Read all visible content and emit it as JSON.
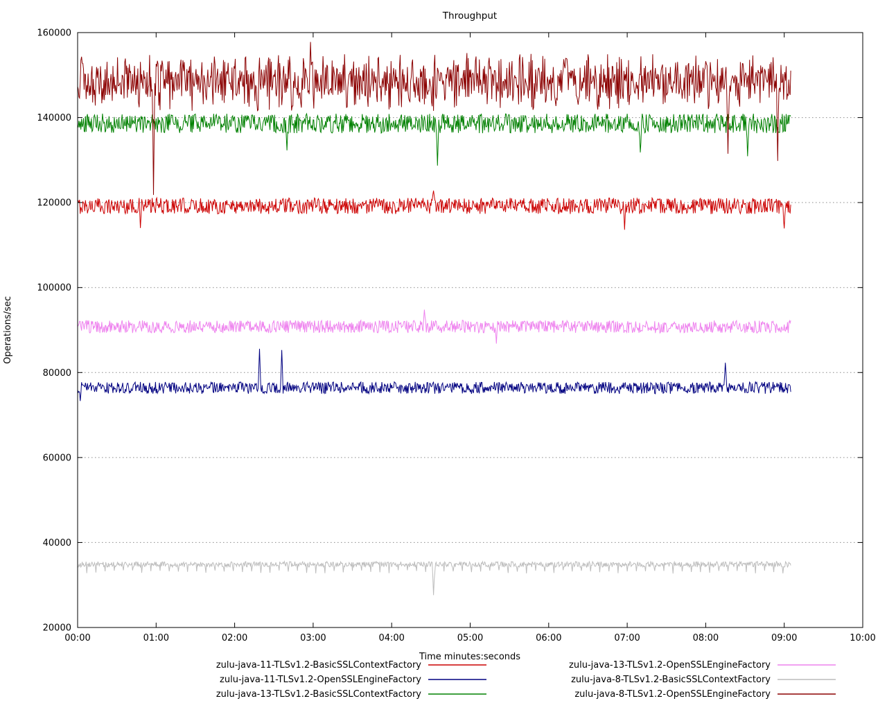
{
  "chart_data": {
    "type": "line",
    "title": "Throughput",
    "xlabel": "Time minutes:seconds",
    "ylabel": "Operations/sec",
    "xlim_seconds": [
      0,
      600
    ],
    "ylim": [
      20000,
      160000
    ],
    "grid": "horizontal-dotted",
    "legend_position": "below-plot-two-columns",
    "x_ticks": [
      {
        "label": "00:00",
        "seconds": 0
      },
      {
        "label": "01:00",
        "seconds": 60
      },
      {
        "label": "02:00",
        "seconds": 120
      },
      {
        "label": "03:00",
        "seconds": 180
      },
      {
        "label": "04:00",
        "seconds": 240
      },
      {
        "label": "05:00",
        "seconds": 300
      },
      {
        "label": "06:00",
        "seconds": 360
      },
      {
        "label": "07:00",
        "seconds": 420
      },
      {
        "label": "08:00",
        "seconds": 480
      },
      {
        "label": "09:00",
        "seconds": 540
      },
      {
        "label": "10:00",
        "seconds": 600
      }
    ],
    "y_ticks": [
      20000,
      40000,
      60000,
      80000,
      100000,
      120000,
      140000,
      160000
    ],
    "data_end_seconds": 545,
    "sample_interval_seconds": 0.5,
    "legend": {
      "columns": [
        [
          0,
          1,
          2
        ],
        [
          3,
          4,
          5
        ]
      ]
    },
    "series": [
      {
        "name": "zulu-java-11-TLSv1.2-BasicSSLContextFactory",
        "color": "#cc0000",
        "approx_mean": 119200,
        "noise_amplitude": 1900,
        "visible_range": [
          113500,
          123000
        ],
        "events": [
          {
            "t": 48,
            "value": 114000
          },
          {
            "t": 272,
            "value": 122800
          },
          {
            "t": 418,
            "value": 113600
          },
          {
            "t": 540,
            "value": 113900
          }
        ]
      },
      {
        "name": "zulu-java-11-TLSv1.2-OpenSSLEngineFactory",
        "color": "#000080",
        "approx_mean": 76400,
        "noise_amplitude": 1400,
        "visible_range": [
          73000,
          85600
        ],
        "events": [
          {
            "t": 2,
            "value": 73300
          },
          {
            "t": 139,
            "value": 85600
          },
          {
            "t": 156,
            "value": 85300
          },
          {
            "t": 495,
            "value": 82300
          }
        ]
      },
      {
        "name": "zulu-java-13-TLSv1.2-BasicSSLContextFactory",
        "color": "#008000",
        "approx_mean": 138900,
        "noise_amplitude": 2300,
        "noise_skew": 0.56,
        "visible_range": [
          128500,
          143500
        ],
        "events": [
          {
            "t": 160,
            "value": 132300
          },
          {
            "t": 275,
            "value": 128700
          },
          {
            "t": 430,
            "value": 131800
          },
          {
            "t": 512,
            "value": 130900
          }
        ]
      },
      {
        "name": "zulu-java-13-TLSv1.2-OpenSSLEngineFactory",
        "color": "#ee82ee",
        "approx_mean": 90800,
        "noise_amplitude": 1500,
        "visible_range": [
          86500,
          94800
        ],
        "events": [
          {
            "t": 265,
            "value": 94800
          },
          {
            "t": 320,
            "value": 86800
          }
        ]
      },
      {
        "name": "zulu-java-8-TLSv1.2-BasicSSLContextFactory",
        "color": "#bcbcbc",
        "approx_mean": 35100,
        "noise_amplitude": 650,
        "noise_skew": 0.68,
        "dip_interval_s": 7,
        "dip_level": 33100,
        "visible_range": [
          27500,
          35900
        ],
        "events": [
          {
            "t": 272,
            "value": 27600
          }
        ]
      },
      {
        "name": "zulu-java-8-TLSv1.2-OpenSSLEngineFactory",
        "color": "#8b0000",
        "approx_mean": 148400,
        "noise_amplitude": 7000,
        "envelope_mod": true,
        "visible_range": [
          121500,
          157800
        ],
        "events": [
          {
            "t": 58,
            "value": 121800
          },
          {
            "t": 178,
            "value": 157800
          },
          {
            "t": 497,
            "value": 131500
          },
          {
            "t": 535,
            "value": 129800
          }
        ]
      }
    ]
  }
}
